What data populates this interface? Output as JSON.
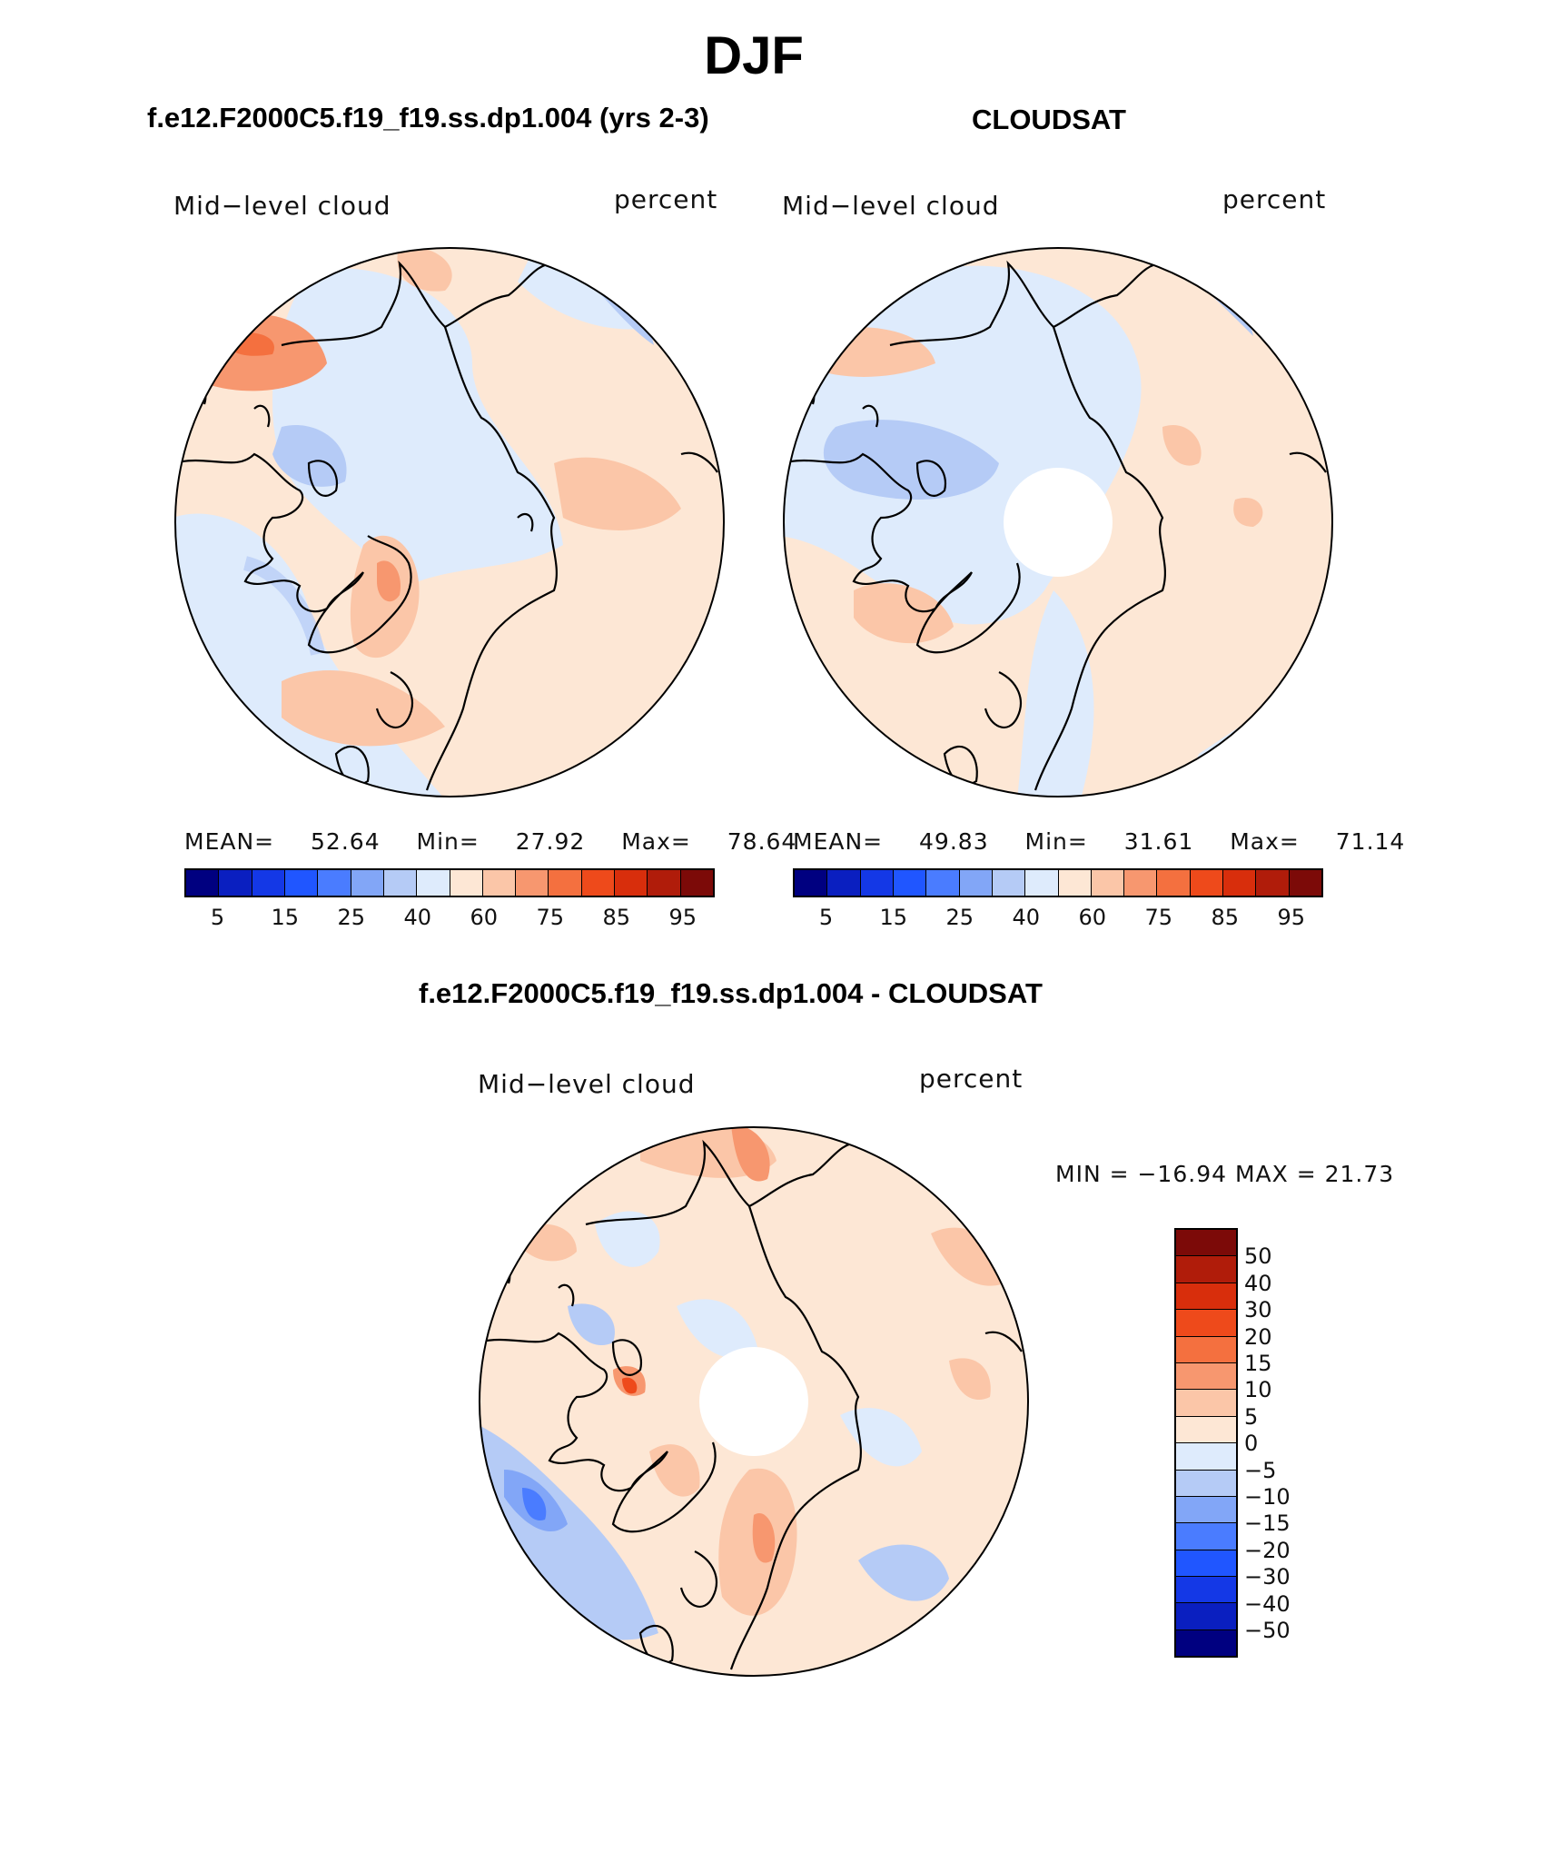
{
  "title": "DJF",
  "panels": {
    "model": {
      "title": "f.e12.F2000C5.f19_f19.ss.dp1.004 (yrs 2-3)",
      "variable": "Mid−level cloud",
      "units": "percent",
      "mean_label": "MEAN=",
      "mean": "52.64",
      "min_label": "Min=",
      "min": "27.92",
      "max_label": "Max=",
      "max": "78.64"
    },
    "obs": {
      "title": "CLOUDSAT",
      "variable": "Mid−level cloud",
      "units": "percent",
      "mean_label": "MEAN=",
      "mean": "49.83",
      "min_label": "Min=",
      "min": "31.61",
      "max_label": "Max=",
      "max": "71.14"
    },
    "diff": {
      "title": "f.e12.F2000C5.f19_f19.ss.dp1.004 - CLOUDSAT",
      "variable": "Mid−level cloud",
      "units": "percent",
      "minmax_text": "MIN = −16.94 MAX =  21.73"
    }
  },
  "colorbar_levels": {
    "abs_ticks": [
      "5",
      "15",
      "25",
      "40",
      "60",
      "75",
      "85",
      "95"
    ],
    "abs_colors": [
      "#000080",
      "#0a1fc0",
      "#1438e6",
      "#2056ff",
      "#4a7cff",
      "#82a6f7",
      "#b5cbf6",
      "#deebfc",
      "#fde7d5",
      "#fbc6a8",
      "#f7976f",
      "#f4703f",
      "#ee4a1b",
      "#d82e0c",
      "#b01c0a",
      "#7c0a08"
    ],
    "diff_ticks": [
      "50",
      "40",
      "30",
      "20",
      "15",
      "10",
      "5",
      "0",
      "−5",
      "−10",
      "−15",
      "−20",
      "−30",
      "−40",
      "−50"
    ],
    "diff_colors": [
      "#7c0a08",
      "#b01c0a",
      "#d82e0c",
      "#ee4a1b",
      "#f4703f",
      "#f7976f",
      "#fbc6a8",
      "#fde7d5",
      "#deebfc",
      "#b5cbf6",
      "#82a6f7",
      "#4a7cff",
      "#2056ff",
      "#1438e6",
      "#0a1fc0",
      "#000080"
    ]
  }
}
